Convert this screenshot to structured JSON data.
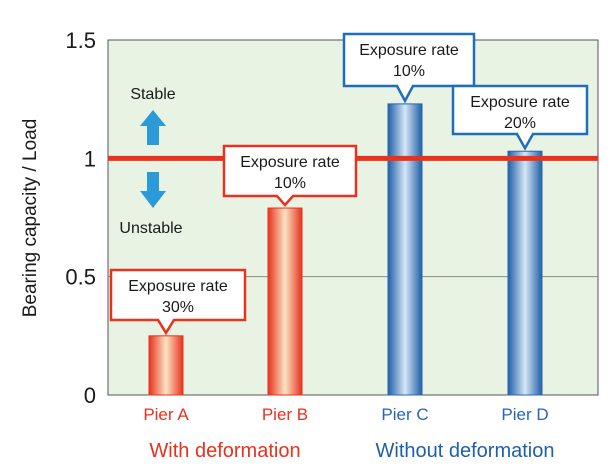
{
  "chart_data": {
    "type": "bar",
    "ylabel": "Bearing capacity / Load",
    "ylim": [
      0,
      1.5
    ],
    "yticks": [
      "0",
      "0.5",
      "1",
      "1.5"
    ],
    "categories": [
      "Pier A",
      "Pier B",
      "Pier C",
      "Pier D"
    ],
    "values": [
      0.25,
      0.79,
      1.23,
      1.03
    ],
    "groups": [
      {
        "label": "With deformation",
        "color": "#e8321e",
        "members": [
          "Pier A",
          "Pier B"
        ]
      },
      {
        "label": "Without deformation",
        "color": "#1f5fa8",
        "members": [
          "Pier C",
          "Pier D"
        ]
      }
    ],
    "bar_colors": [
      "#e8321e",
      "#e8321e",
      "#2a66b3",
      "#2a66b3"
    ],
    "annotations": [
      {
        "bar": "Pier A",
        "line1": "Exposure rate",
        "line2": "30%",
        "border": "#e8321e"
      },
      {
        "bar": "Pier B",
        "line1": "Exposure rate",
        "line2": "10%",
        "border": "#e8321e"
      },
      {
        "bar": "Pier C",
        "line1": "Exposure rate",
        "line2": "10%",
        "border": "#1f6fb8"
      },
      {
        "bar": "Pier D",
        "line1": "Exposure rate",
        "line2": "20%",
        "border": "#1f6fb8"
      }
    ],
    "reference_line": {
      "value": 1,
      "color": "#e8321e"
    },
    "stable_label": "Stable",
    "unstable_label": "Unstable",
    "grid": true,
    "plot_background": "#e8f3e3"
  }
}
